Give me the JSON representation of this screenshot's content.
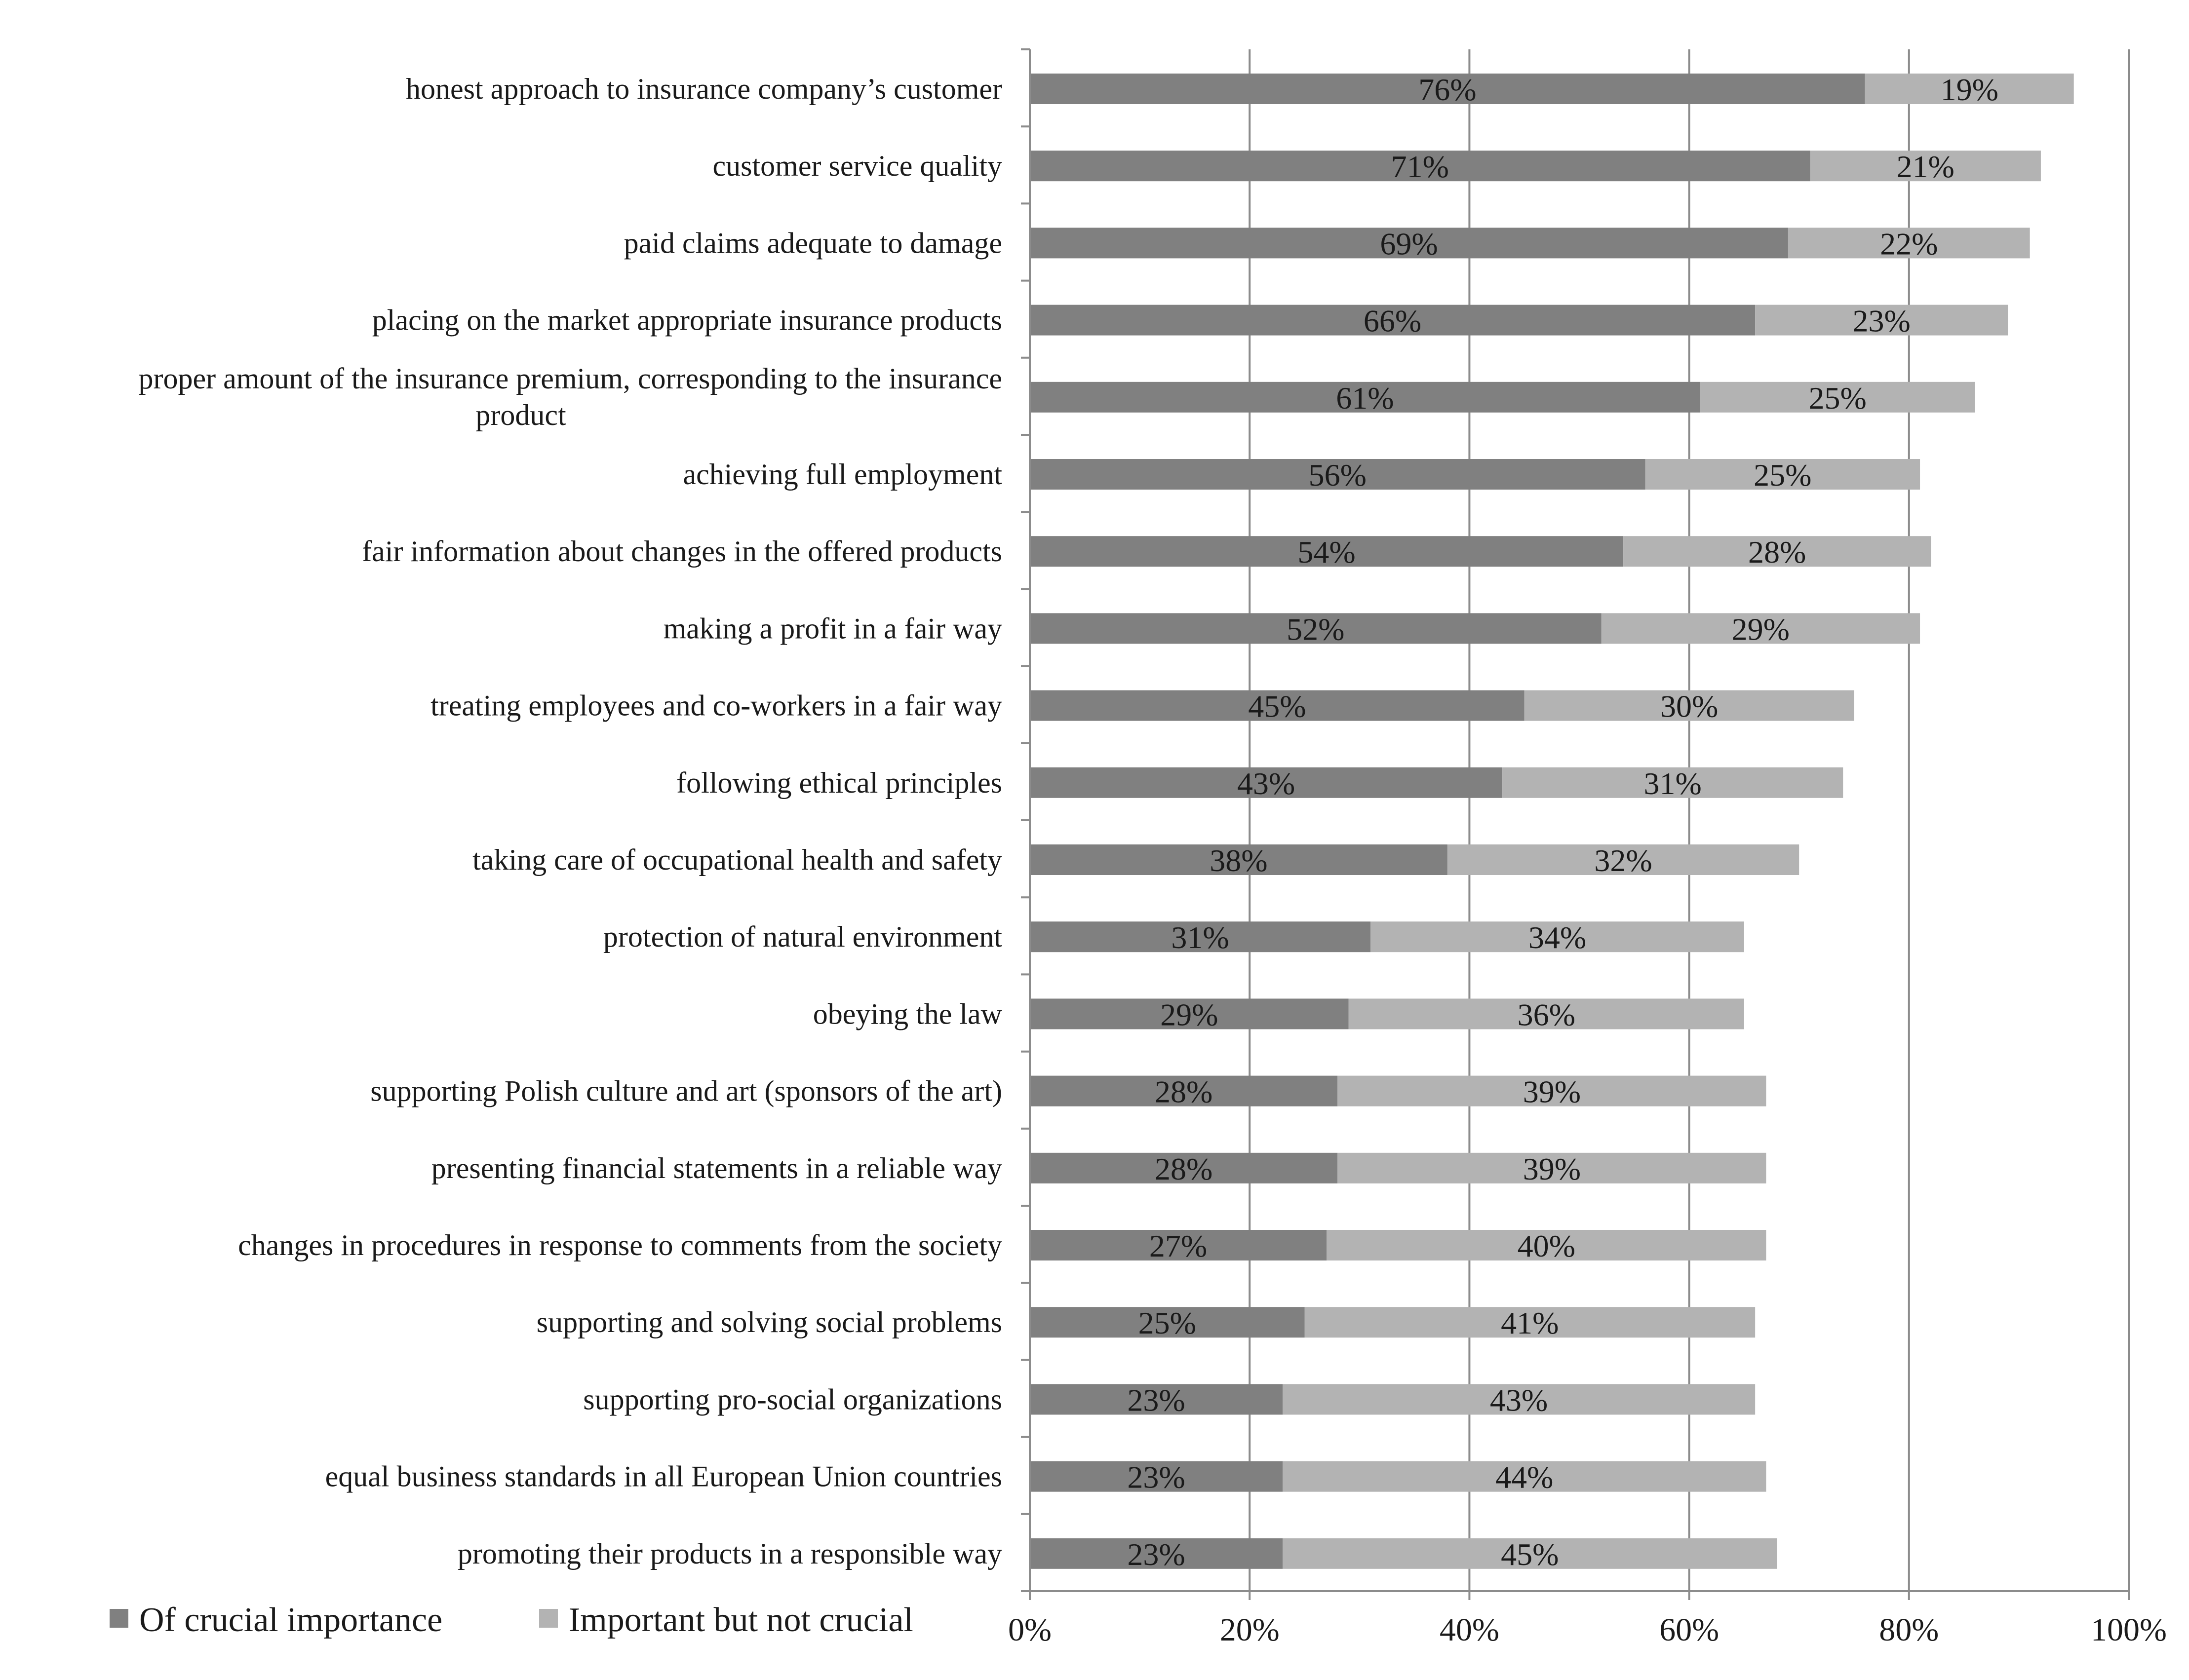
{
  "chart_data": {
    "type": "bar",
    "orientation": "horizontal",
    "stacked": true,
    "categories": [
      "honest approach to insurance company’s customer",
      "customer service quality",
      "paid claims adequate to damage",
      "placing on the market appropriate insurance products",
      "proper amount of the insurance premium, corresponding to the insurance product",
      "achieving full employment",
      "fair information about changes in the offered products",
      "making a profit in a fair way",
      "treating employees and co-workers in a fair way",
      "following ethical principles",
      "taking care of occupational health and safety",
      "protection of natural environment",
      "obeying the law",
      "supporting Polish culture and art (sponsors of the art)",
      "presenting financial statements in a reliable way",
      "changes in procedures in response to comments from the society",
      "supporting and solving social problems",
      "supporting pro-social organizations",
      "equal business standards in all European Union countries",
      "promoting their products in a responsible way"
    ],
    "category_label_lines": [
      [
        "honest approach to insurance company’s customer"
      ],
      [
        "customer service quality"
      ],
      [
        "paid claims adequate to damage"
      ],
      [
        "placing on the market appropriate insurance products"
      ],
      [
        "proper amount of the insurance premium, corresponding to the insurance",
        "product"
      ],
      [
        "achieving full employment"
      ],
      [
        "fair information about changes in the offered products"
      ],
      [
        "making a profit in a fair way"
      ],
      [
        "treating employees and co-workers in a fair way"
      ],
      [
        "following ethical principles"
      ],
      [
        "taking care of occupational health and safety"
      ],
      [
        "protection of natural environment"
      ],
      [
        "obeying the law"
      ],
      [
        "supporting Polish culture and art (sponsors of the art)"
      ],
      [
        "presenting financial statements in a reliable way"
      ],
      [
        "changes in procedures in response to comments from the society"
      ],
      [
        "supporting and solving social problems"
      ],
      [
        "supporting pro-social organizations"
      ],
      [
        "equal business standards in all European Union countries"
      ],
      [
        "promoting their products in a responsible way"
      ]
    ],
    "series": [
      {
        "name": "Of crucial importance",
        "color": "#808080",
        "values": [
          76,
          71,
          69,
          66,
          61,
          56,
          54,
          52,
          45,
          43,
          38,
          31,
          29,
          28,
          28,
          27,
          25,
          23,
          23,
          23
        ],
        "labels": [
          "76%",
          "71%",
          "69%",
          "66%",
          "61%",
          "56%",
          "54%",
          "52%",
          "45%",
          "43%",
          "38%",
          "31%",
          "29%",
          "28%",
          "28%",
          "27%",
          "25%",
          "23%",
          "23%",
          "23%"
        ]
      },
      {
        "name": "Important but not crucial",
        "color": "#b3b3b3",
        "values": [
          19,
          21,
          22,
          23,
          25,
          25,
          28,
          29,
          30,
          31,
          32,
          34,
          36,
          39,
          39,
          40,
          41,
          43,
          44,
          45
        ],
        "labels": [
          "19%",
          "21%",
          "22%",
          "23%",
          "25%",
          "25%",
          "28%",
          "29%",
          "30%",
          "31%",
          "32%",
          "34%",
          "36%",
          "39%",
          "39%",
          "40%",
          "41%",
          "43%",
          "44%",
          "45%"
        ]
      }
    ],
    "xlim": [
      0,
      100
    ],
    "x_ticks": [
      0,
      20,
      40,
      60,
      80,
      100
    ],
    "x_tick_labels": [
      "0%",
      "20%",
      "40%",
      "60%",
      "80%",
      "100%"
    ],
    "grid": "vertical",
    "legend_position": "bottom-left",
    "title": "",
    "xlabel": "",
    "ylabel": ""
  }
}
